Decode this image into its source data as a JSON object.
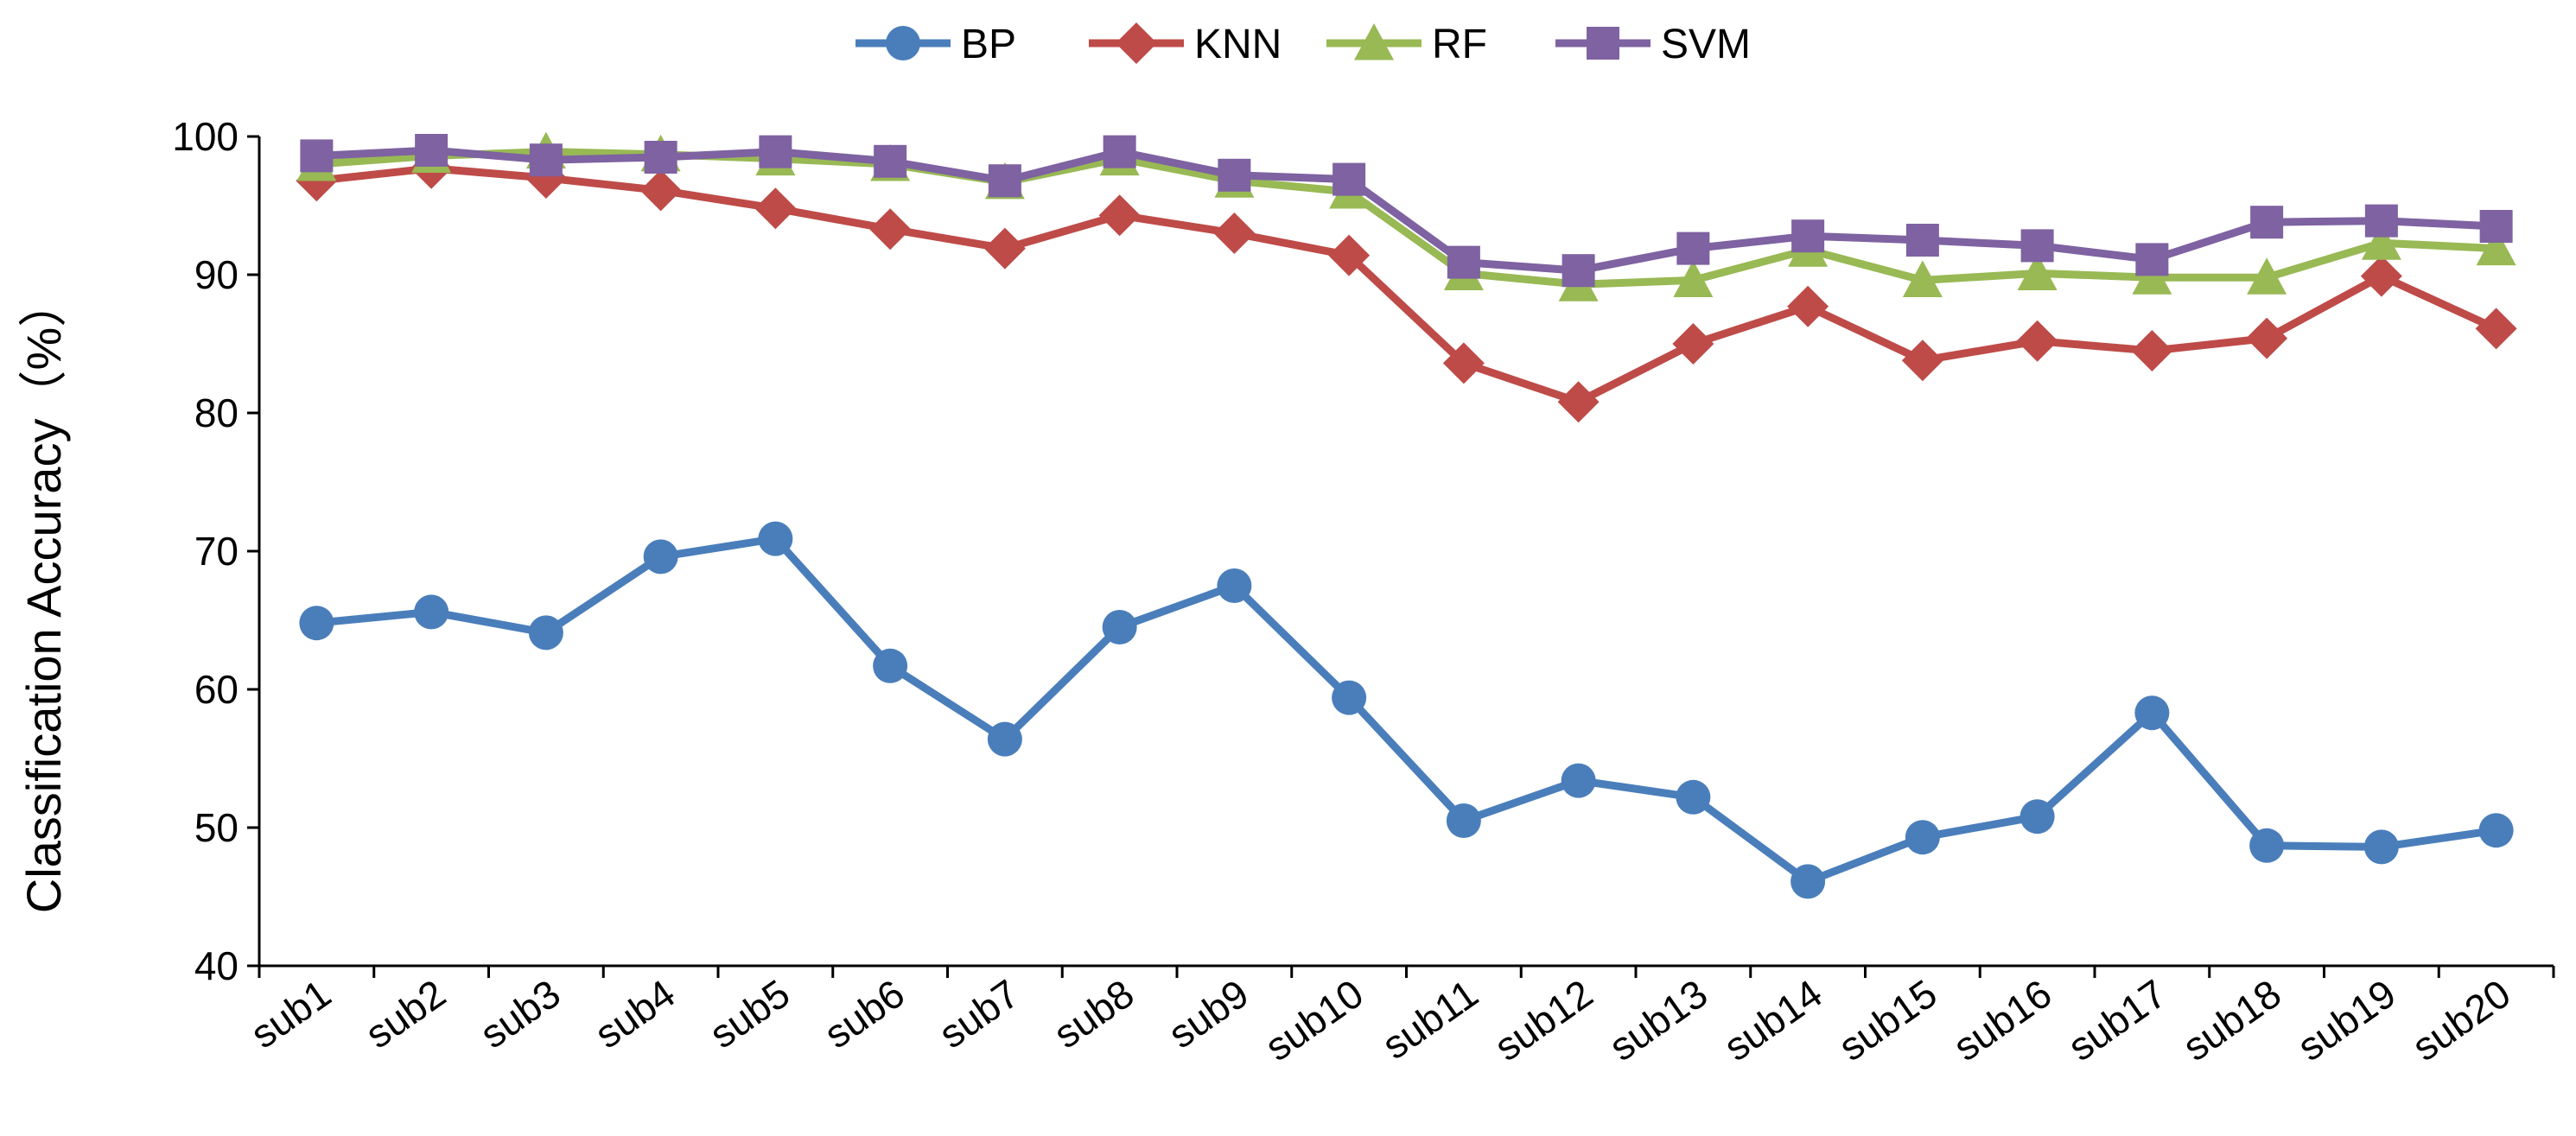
{
  "chart_data": {
    "type": "line",
    "title": "",
    "xlabel": "",
    "ylabel": "Classification  Accuracy（%）",
    "ylim": [
      40,
      100
    ],
    "yticks": [
      40,
      50,
      60,
      70,
      80,
      90,
      100
    ],
    "grid": false,
    "legend_position": "top",
    "categories": [
      "sub1",
      "sub2",
      "sub3",
      "sub4",
      "sub5",
      "sub6",
      "sub7",
      "sub8",
      "sub9",
      "sub10",
      "sub11",
      "sub12",
      "sub13",
      "sub14",
      "sub15",
      "sub16",
      "sub17",
      "sub18",
      "sub19",
      "sub20"
    ],
    "series": [
      {
        "name": "BP",
        "color": "#4a7ebb",
        "marker": "circle",
        "values": [
          64.8,
          65.6,
          64.1,
          69.6,
          70.9,
          61.7,
          56.4,
          64.5,
          67.5,
          59.4,
          50.5,
          53.4,
          52.2,
          46.1,
          49.3,
          50.8,
          58.3,
          48.7,
          48.6,
          49.8
        ]
      },
      {
        "name": "KNN",
        "color": "#be4b48",
        "marker": "diamond",
        "values": [
          96.8,
          97.7,
          97.0,
          96.1,
          94.8,
          93.3,
          91.9,
          94.3,
          93.0,
          91.4,
          83.6,
          80.8,
          85.0,
          87.7,
          83.8,
          85.2,
          84.5,
          85.4,
          89.9,
          86.1
        ]
      },
      {
        "name": "RF",
        "color": "#98b954",
        "marker": "triangle",
        "values": [
          98.0,
          98.6,
          98.9,
          98.7,
          98.4,
          98.0,
          96.7,
          98.4,
          96.8,
          96.0,
          90.1,
          89.3,
          89.6,
          91.8,
          89.6,
          90.1,
          89.8,
          89.8,
          92.3,
          91.9
        ]
      },
      {
        "name": "SVM",
        "color": "#7e62a1",
        "marker": "square",
        "values": [
          98.6,
          99.0,
          98.3,
          98.5,
          98.9,
          98.2,
          96.8,
          98.9,
          97.2,
          96.9,
          90.9,
          90.3,
          91.9,
          92.8,
          92.5,
          92.1,
          91.1,
          93.8,
          93.9,
          93.5
        ]
      }
    ]
  }
}
